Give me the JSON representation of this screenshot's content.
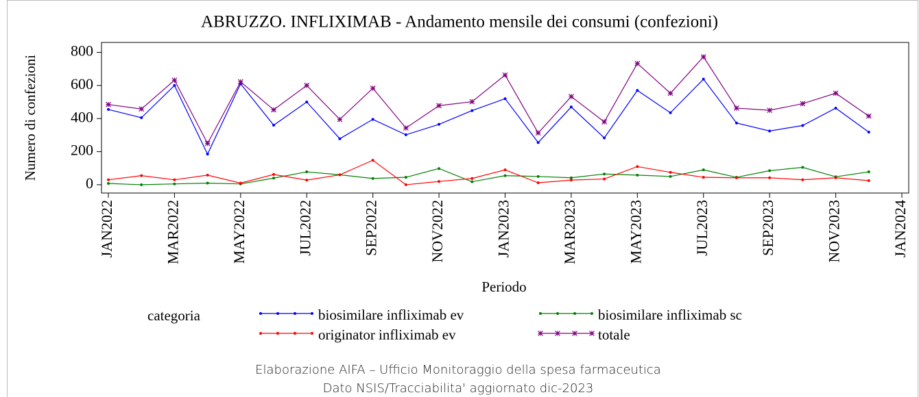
{
  "chart_data": {
    "type": "line",
    "title": "ABRUZZO. INFLIXIMAB - Andamento mensile dei consumi (confezioni)",
    "x_label": "Periodo",
    "y_label": "Numero di confezioni",
    "legend_title": "categoria",
    "footnotes": [
      "Elaborazione AIFA – Ufficio Monitoraggio della spesa farmaceutica",
      "Dato NSIS/Tracciabilita' aggiornato dic-2023"
    ],
    "x": [
      "2022-01",
      "2022-02",
      "2022-03",
      "2022-04",
      "2022-05",
      "2022-06",
      "2022-07",
      "2022-08",
      "2022-09",
      "2022-10",
      "2022-11",
      "2022-12",
      "2023-01",
      "2023-02",
      "2023-03",
      "2023-04",
      "2023-05",
      "2023-06",
      "2023-07",
      "2023-08",
      "2023-09",
      "2023-10",
      "2023-11",
      "2023-12"
    ],
    "xlim": [
      "2022-01",
      "2024-01"
    ],
    "xticks": [
      {
        "value": "2022-01",
        "label": "JAN2022"
      },
      {
        "value": "2022-03",
        "label": "MAR2022"
      },
      {
        "value": "2022-05",
        "label": "MAY2022"
      },
      {
        "value": "2022-07",
        "label": "JUL2022"
      },
      {
        "value": "2022-09",
        "label": "SEP2022"
      },
      {
        "value": "2022-11",
        "label": "NOV2022"
      },
      {
        "value": "2023-01",
        "label": "JAN2023"
      },
      {
        "value": "2023-03",
        "label": "MAR2023"
      },
      {
        "value": "2023-05",
        "label": "MAY2023"
      },
      {
        "value": "2023-07",
        "label": "JUL2023"
      },
      {
        "value": "2023-09",
        "label": "SEP2023"
      },
      {
        "value": "2023-11",
        "label": "NOV2023"
      },
      {
        "value": "2024-01",
        "label": "JAN2024"
      }
    ],
    "ylim": [
      -50,
      860
    ],
    "yticks": [
      0,
      200,
      400,
      600,
      800
    ],
    "series": [
      {
        "name": "biosimilare infliximab ev",
        "color": "#0000ff",
        "marker": "dot",
        "values": [
          455,
          405,
          600,
          185,
          610,
          360,
          500,
          278,
          395,
          302,
          365,
          448,
          520,
          255,
          470,
          283,
          570,
          435,
          638,
          373,
          325,
          358,
          463,
          318
        ]
      },
      {
        "name": "biosimilare infliximab sc",
        "color": "#008000",
        "marker": "dot",
        "values": [
          8,
          0,
          5,
          10,
          5,
          40,
          78,
          60,
          38,
          45,
          98,
          18,
          55,
          50,
          42,
          65,
          58,
          50,
          90,
          45,
          85,
          105,
          48,
          78
        ]
      },
      {
        "name": "originator infliximab ev",
        "color": "#ff0000",
        "marker": "dot",
        "values": [
          30,
          55,
          30,
          58,
          10,
          62,
          28,
          60,
          148,
          0,
          20,
          38,
          90,
          12,
          28,
          35,
          110,
          75,
          45,
          42,
          42,
          30,
          42,
          25
        ]
      },
      {
        "name": "totale",
        "color": "#800080",
        "marker": "star",
        "values": [
          485,
          458,
          632,
          250,
          622,
          453,
          600,
          395,
          583,
          343,
          478,
          502,
          663,
          313,
          533,
          380,
          733,
          553,
          773,
          463,
          450,
          490,
          553,
          415
        ]
      }
    ]
  }
}
